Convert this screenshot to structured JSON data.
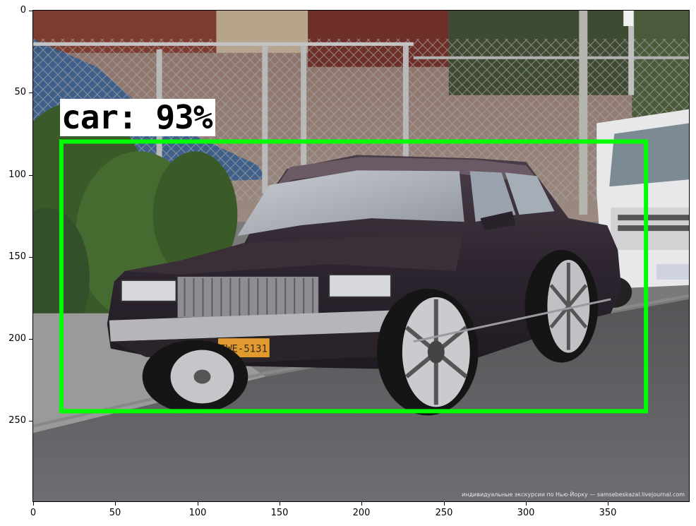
{
  "detection": {
    "label_text": "car: 93%",
    "box_color": "#00ff00"
  },
  "axes": {
    "x_ticks": [
      "0",
      "50",
      "100",
      "150",
      "200",
      "250",
      "300",
      "350"
    ],
    "y_ticks": [
      "0",
      "50",
      "100",
      "150",
      "200",
      "250"
    ]
  },
  "photo": {
    "plate_text": "IWE-5131",
    "watermark": "индивидуальные экскурсии по Нью-Йорку — samsebeskazal.livejournal.com"
  }
}
